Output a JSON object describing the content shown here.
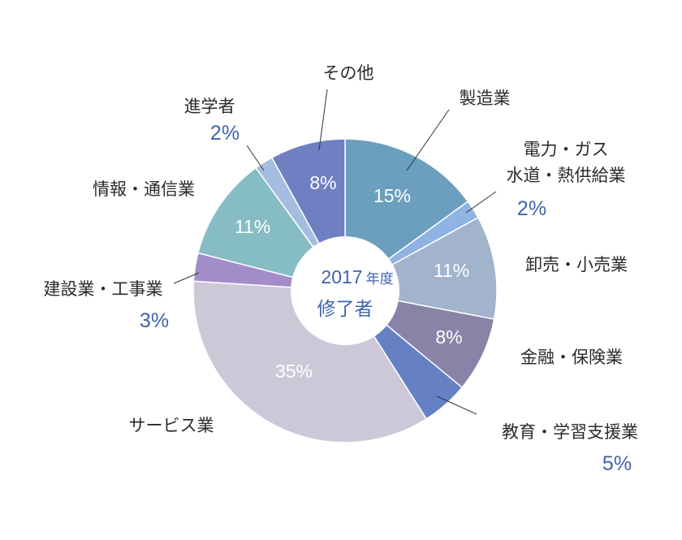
{
  "chart_data": {
    "type": "pie",
    "center": {
      "year": "2017",
      "year_suffix": "年度",
      "caption": "修了者"
    },
    "slices": [
      {
        "label": "製造業",
        "value": 15,
        "pct_text": "15%",
        "color": "#6b9fbd"
      },
      {
        "label": "電力・ガス・水道・熱供給業",
        "label_lines": [
          "電力・ガス",
          "水道・熱供給業"
        ],
        "value": 2,
        "pct_text": "2%",
        "color": "#8fb3e3"
      },
      {
        "label": "卸売・小売業",
        "value": 11,
        "pct_text": "11%",
        "color": "#a2b3cc"
      },
      {
        "label": "金融・保険業",
        "value": 8,
        "pct_text": "8%",
        "color": "#8a83a8"
      },
      {
        "label": "教育・学習支援業",
        "value": 5,
        "pct_text": "5%",
        "color": "#6680c4"
      },
      {
        "label": "サービス業",
        "value": 35,
        "pct_text": "35%",
        "color": "#cdc8d8"
      },
      {
        "label": "建設業・工事業",
        "value": 3,
        "pct_text": "3%",
        "color": "#a38dc9"
      },
      {
        "label": "情報・通信業",
        "value": 11,
        "pct_text": "11%",
        "color": "#86bcc4"
      },
      {
        "label": "進学者",
        "value": 2,
        "pct_text": "2%",
        "color": "#a5bde0"
      },
      {
        "label": "その他",
        "value": 8,
        "pct_text": "8%",
        "color": "#6e7fc2"
      }
    ]
  }
}
